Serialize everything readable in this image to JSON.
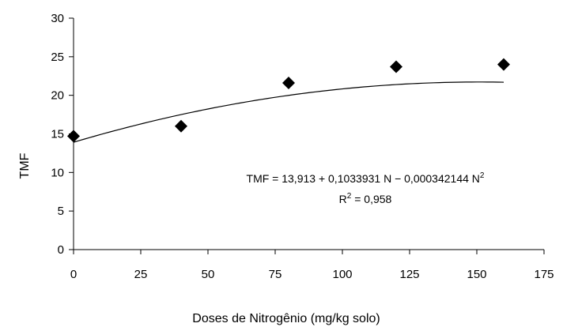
{
  "chart_data": {
    "type": "scatter",
    "x": [
      0,
      40,
      80,
      120,
      160
    ],
    "y": [
      14.7,
      16.0,
      21.6,
      23.7,
      24.0
    ],
    "xlabel": "Doses de Nitrogênio (mg/kg solo)",
    "ylabel": "TMF",
    "xlim": [
      0,
      175
    ],
    "ylim": [
      0,
      30
    ],
    "x_ticks": [
      "0",
      "25",
      "50",
      "75",
      "100",
      "125",
      "150",
      "175"
    ],
    "y_ticks": [
      "0",
      "5",
      "10",
      "15",
      "20",
      "25",
      "30"
    ],
    "trendline": {
      "type": "polynomial-2",
      "coefficients": [
        13.913,
        0.1033931,
        -0.000342144
      ],
      "equation_main": "TMF = 13,913 + 0,1033931 N − 0,000342144 N",
      "equation_exp": "2",
      "r2_prefix": "R",
      "r2_exp": "2",
      "r2_value": " = 0,958"
    },
    "grid": false,
    "legend": "none"
  }
}
